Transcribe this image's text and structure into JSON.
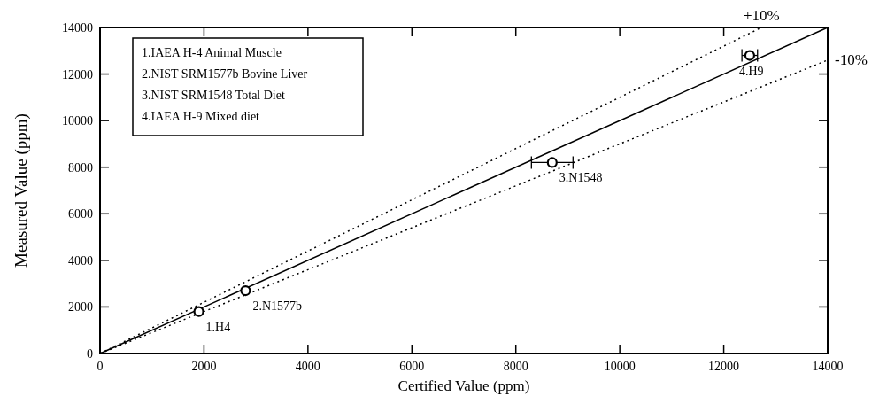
{
  "chart_data": {
    "type": "scatter",
    "xlabel": "Certified Value (ppm)",
    "ylabel": "Measured Value (ppm)",
    "xlim": [
      0,
      14000
    ],
    "ylim": [
      0,
      14000
    ],
    "xticks": [
      0,
      2000,
      4000,
      6000,
      8000,
      10000,
      12000,
      14000
    ],
    "yticks": [
      0,
      2000,
      4000,
      6000,
      8000,
      10000,
      12000,
      14000
    ],
    "grid": false,
    "marker": "circle",
    "series": [
      {
        "type": "line",
        "color": "#000000",
        "line_style": "solid",
        "marker": "none",
        "x": [
          0,
          14000
        ],
        "values": [
          0,
          14000
        ]
      },
      {
        "type": "line",
        "name": "+10%",
        "color": "#000000",
        "line_style": "dotted",
        "marker": "none",
        "x": [
          0,
          12727
        ],
        "values": [
          0,
          14000
        ]
      },
      {
        "type": "line",
        "name": "-10%",
        "color": "#000000",
        "line_style": "dotted",
        "marker": "none",
        "x": [
          0,
          14000
        ],
        "values": [
          0,
          12600
        ]
      },
      {
        "color": "#000000",
        "x": [
          1900,
          2800,
          8700,
          12500
        ],
        "values": [
          1800,
          2700,
          8200,
          12800
        ],
        "xerrors": [
          null,
          null,
          400,
          150
        ]
      }
    ],
    "annotations": [
      "1.IAEA H-4 Animal Muscle",
      "2.NIST SRM1577b Bovine Liver",
      "3.NIST SRM1548 Total Diet",
      "4.IAEA H-9 Mixed diet",
      {
        "text": "1.H4",
        "x": 1900,
        "y": 1800
      },
      {
        "text": "2.N1577b",
        "x": 2800,
        "y": 2700
      },
      {
        "text": "3.N1548",
        "x": 8700,
        "y": 8200
      },
      {
        "text": "4.H9",
        "x": 12500,
        "y": 12800
      }
    ]
  }
}
